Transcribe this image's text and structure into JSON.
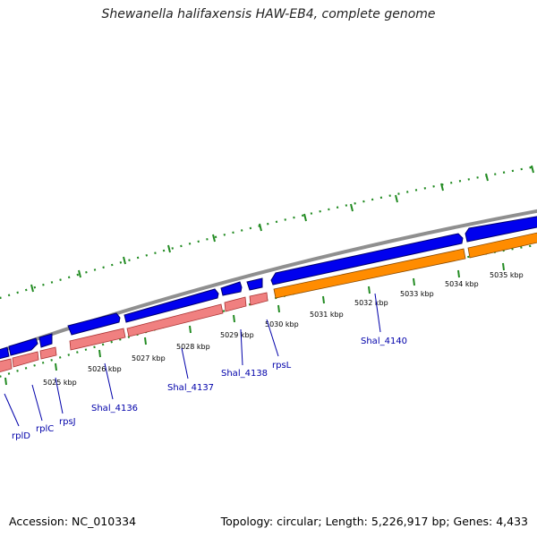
{
  "title": "Shewanella halifaxensis HAW-EB4, complete genome",
  "footer": {
    "accession": "Accession: NC_010334",
    "topology": "Topology: circular; Length: 5,226,917 bp; Genes: 4,433"
  },
  "colors": {
    "backbone": "#8f8f8f",
    "cds": "#0000ee",
    "gene_pink": "#f08080",
    "rrna_orange": "#ff8c00",
    "tick": "#228b22",
    "label": "#0000aa"
  },
  "scale_labels": [
    "5025 kbp",
    "5026 kbp",
    "5027 kbp",
    "5028 kbp",
    "5029 kbp",
    "5030 kbp",
    "5031 kbp",
    "5032 kbp",
    "5033 kbp",
    "5034 kbp",
    "5035 kbp"
  ],
  "gene_labels": [
    "rplD",
    "rplC",
    "rpsJ",
    "Shal_4136",
    "Shal_4137",
    "Shal_4138",
    "rpsL",
    "Shal_4140"
  ]
}
